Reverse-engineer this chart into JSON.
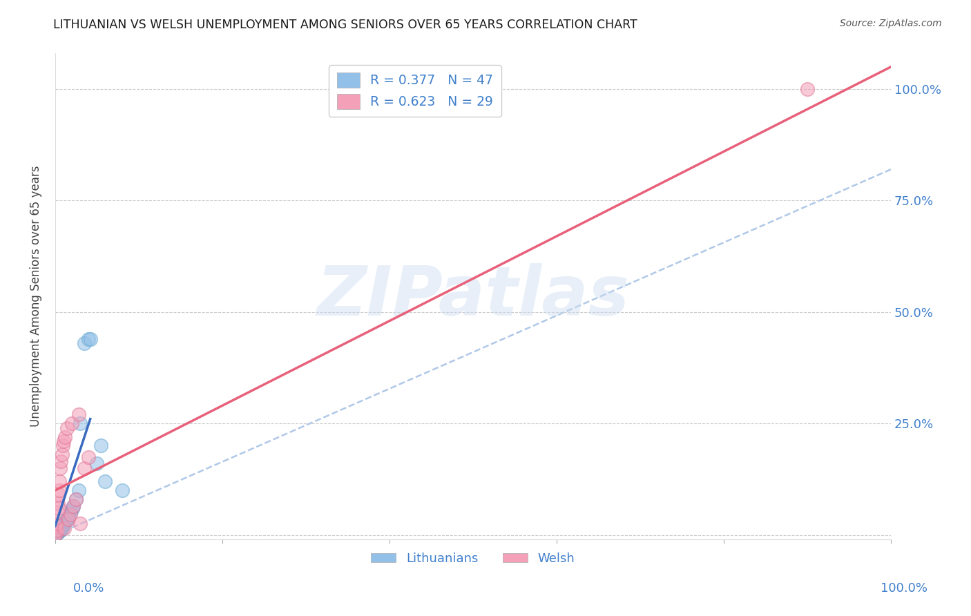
{
  "title": "LITHUANIAN VS WELSH UNEMPLOYMENT AMONG SENIORS OVER 65 YEARS CORRELATION CHART",
  "source": "Source: ZipAtlas.com",
  "ylabel": "Unemployment Among Seniors over 65 years",
  "watermark_text": "ZIPatlas",
  "R_lith": 0.377,
  "N_lith": 47,
  "R_welsh": 0.623,
  "N_welsh": 29,
  "lith_color": "#92c0e8",
  "lith_edge": "#6aaad4",
  "welsh_color": "#f4a0b8",
  "welsh_edge": "#e07898",
  "lith_line_color": "#3a6abf",
  "welsh_line_color": "#e8607a",
  "dashed_line_color": "#b0c8e8",
  "background_color": "#ffffff",
  "grid_color": "#cccccc",
  "title_color": "#1a1a1a",
  "axis_label_color": "#4080cc",
  "tick_color": "#4080cc",
  "lith_x": [
    0.0005,
    0.001,
    0.001,
    0.001,
    0.001,
    0.002,
    0.002,
    0.002,
    0.002,
    0.003,
    0.003,
    0.003,
    0.003,
    0.004,
    0.004,
    0.005,
    0.005,
    0.005,
    0.006,
    0.006,
    0.007,
    0.007,
    0.008,
    0.008,
    0.009,
    0.009,
    0.01,
    0.011,
    0.012,
    0.013,
    0.014,
    0.015,
    0.016,
    0.018,
    0.019,
    0.021,
    0.022,
    0.025,
    0.028,
    0.03,
    0.035,
    0.04,
    0.042,
    0.05,
    0.055,
    0.06,
    0.08
  ],
  "lith_y": [
    0.001,
    0.002,
    0.003,
    0.004,
    0.005,
    0.003,
    0.005,
    0.007,
    0.008,
    0.005,
    0.008,
    0.01,
    0.012,
    0.007,
    0.01,
    0.008,
    0.012,
    0.015,
    0.01,
    0.014,
    0.012,
    0.018,
    0.015,
    0.02,
    0.018,
    0.022,
    0.022,
    0.025,
    0.03,
    0.032,
    0.035,
    0.038,
    0.04,
    0.05,
    0.055,
    0.06,
    0.065,
    0.08,
    0.1,
    0.25,
    0.43,
    0.44,
    0.44,
    0.16,
    0.2,
    0.12,
    0.1
  ],
  "welsh_x": [
    0.0005,
    0.001,
    0.001,
    0.002,
    0.002,
    0.003,
    0.003,
    0.004,
    0.004,
    0.005,
    0.005,
    0.006,
    0.007,
    0.008,
    0.009,
    0.01,
    0.011,
    0.012,
    0.014,
    0.016,
    0.018,
    0.02,
    0.022,
    0.025,
    0.028,
    0.03,
    0.035,
    0.04,
    0.9
  ],
  "welsh_y": [
    0.001,
    0.003,
    0.02,
    0.01,
    0.025,
    0.05,
    0.07,
    0.06,
    0.09,
    0.1,
    0.12,
    0.15,
    0.165,
    0.18,
    0.2,
    0.21,
    0.015,
    0.22,
    0.24,
    0.035,
    0.045,
    0.25,
    0.065,
    0.08,
    0.27,
    0.025,
    0.15,
    0.175,
    1.0
  ],
  "lith_line_x": [
    0.0,
    0.042
  ],
  "lith_line_y": [
    0.02,
    0.26
  ],
  "welsh_line_x": [
    0.0,
    1.0
  ],
  "welsh_line_y": [
    0.1,
    1.05
  ],
  "dash_line_x": [
    0.0,
    1.0
  ],
  "dash_line_y": [
    0.0,
    0.82
  ],
  "xlim": [
    0.0,
    1.0
  ],
  "ylim": [
    -0.01,
    1.08
  ],
  "yticks": [
    0.0,
    0.25,
    0.5,
    0.75,
    1.0
  ],
  "ytick_labels_right": [
    "",
    "25.0%",
    "50.0%",
    "75.0%",
    "100.0%"
  ]
}
